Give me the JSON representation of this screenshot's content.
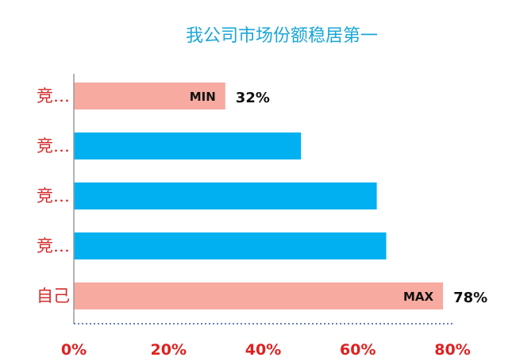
{
  "chart_data": {
    "type": "bar",
    "orientation": "horizontal",
    "title": "我公司市场份额稳居第一",
    "categories": [
      "竞…",
      "竞…",
      "竞…",
      "竞…",
      "自己"
    ],
    "values": [
      32,
      48,
      64,
      66,
      78
    ],
    "xlim": [
      0,
      80
    ],
    "x_ticks": [
      "0%",
      "20%",
      "40%",
      "60%",
      "80%"
    ],
    "bar_colors": [
      "#f7aaa0",
      "#00b0f0",
      "#00b0f0",
      "#00b0f0",
      "#f7aaa0"
    ],
    "bar_inner_labels": [
      "MIN",
      "",
      "",
      "",
      "MAX"
    ],
    "bar_outer_labels": [
      "32%",
      "",
      "",
      "",
      "78%"
    ],
    "grid": false,
    "legend": "none"
  }
}
